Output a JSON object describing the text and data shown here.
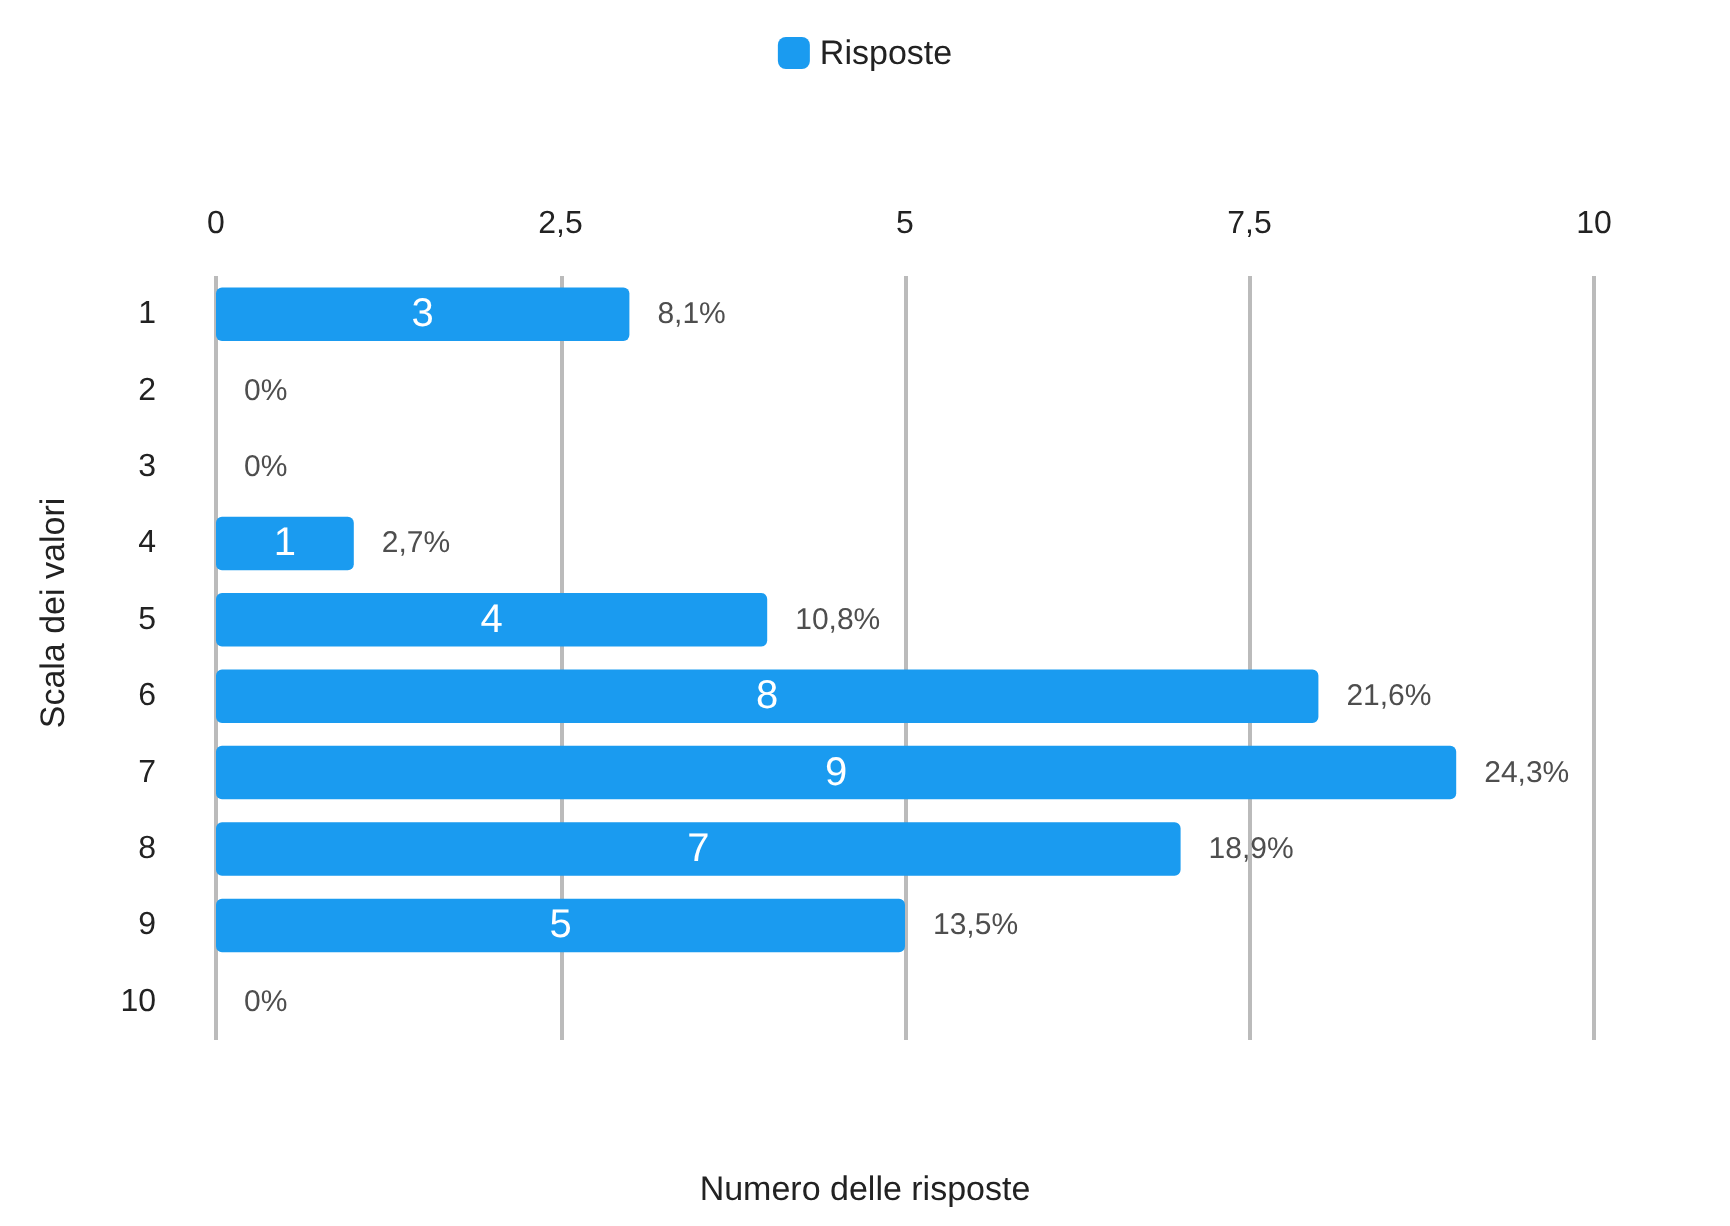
{
  "chart_data": {
    "type": "bar",
    "orientation": "horizontal",
    "xlabel": "Numero delle risposte",
    "ylabel": "Scala dei valori",
    "categories": [
      "1",
      "2",
      "3",
      "4",
      "5",
      "6",
      "7",
      "8",
      "9",
      "10"
    ],
    "series": [
      {
        "name": "Risposte",
        "color": "#1a9bf0",
        "values": [
          3,
          0,
          0,
          1,
          4,
          8,
          9,
          7,
          5,
          0
        ],
        "value_labels": [
          "3",
          null,
          null,
          "1",
          "4",
          "8",
          "9",
          "7",
          "5",
          null
        ]
      }
    ],
    "annotations": [
      {
        "text": "8,1%",
        "x": 3,
        "y": "1"
      },
      {
        "text": "0%",
        "x": 0,
        "y": "2"
      },
      {
        "text": "0%",
        "x": 0,
        "y": "3"
      },
      {
        "text": "2,7%",
        "x": 1,
        "y": "4"
      },
      {
        "text": "10,8%",
        "x": 4,
        "y": "5"
      },
      {
        "text": "21,6%",
        "x": 8,
        "y": "6"
      },
      {
        "text": "24,3%",
        "x": 9,
        "y": "7"
      },
      {
        "text": "18,9%",
        "x": 7,
        "y": "8"
      },
      {
        "text": "13,5%",
        "x": 5,
        "y": "9"
      },
      {
        "text": "0%",
        "x": 0,
        "y": "10"
      }
    ],
    "xlim": [
      0,
      10
    ],
    "xticks": [
      0,
      {
        "value": 2.5,
        "label": "2,5"
      },
      5,
      {
        "value": 7.5,
        "label": "7,5"
      },
      10
    ],
    "grid": "x",
    "legend": "top"
  }
}
